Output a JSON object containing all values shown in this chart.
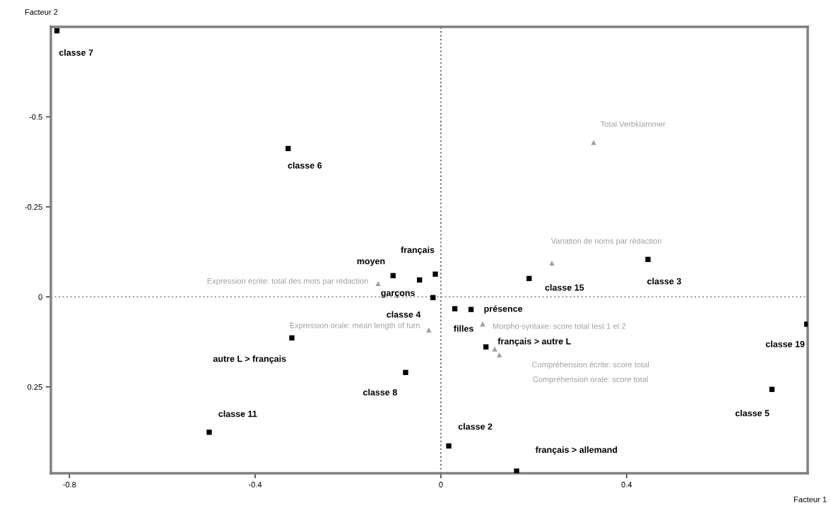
{
  "chart_data": {
    "type": "scatter",
    "xlabel": "Facteur 1",
    "ylabel": "Facteur 2",
    "xlim": [
      -0.84,
      0.79
    ],
    "ylim": [
      0.49,
      -0.75
    ],
    "xticks": [
      -0.8,
      -0.4,
      0,
      0.4
    ],
    "yticks": [
      -0.5,
      -0.25,
      0,
      0.25
    ],
    "grid": false,
    "ref_lines": [
      {
        "axis": "x",
        "value": 0,
        "line_style": "dotted",
        "color": "#707070"
      },
      {
        "axis": "y",
        "value": 0,
        "line_style": "dotted",
        "color": "#999999"
      }
    ],
    "series": [
      {
        "color": "#000000",
        "marker": "square",
        "x": [
          -0.827,
          -0.329,
          -0.103,
          -0.012,
          -0.046,
          -0.017,
          -0.321,
          -0.076,
          -0.499,
          0.017,
          0.163,
          0.03,
          0.065,
          0.097,
          0.19,
          0.446,
          0.788,
          0.713
        ],
        "values": [
          -0.739,
          -0.412,
          -0.059,
          -0.063,
          -0.047,
          0.002,
          0.114,
          0.21,
          0.376,
          0.414,
          0.484,
          0.033,
          0.035,
          0.139,
          -0.051,
          -0.104,
          0.076,
          0.257
        ]
      },
      {
        "color": "#a0a0a0",
        "marker": "triangle",
        "x": [
          -0.135,
          -0.026,
          0.09,
          0.116,
          0.126,
          0.239,
          0.329
        ],
        "values": [
          -0.037,
          0.092,
          0.075,
          0.145,
          0.161,
          -0.094,
          -0.429
        ]
      }
    ],
    "annotations": [
      {
        "text": "classe 7",
        "x": -0.827,
        "y": -0.739
      },
      {
        "text": "classe 6",
        "x": -0.329,
        "y": -0.412
      },
      {
        "text": "moyen",
        "x": -0.103,
        "y": -0.059
      },
      {
        "text": "français",
        "x": -0.012,
        "y": -0.063
      },
      {
        "text": "garçons",
        "x": -0.046,
        "y": -0.047
      },
      {
        "text": "classe 4",
        "x": -0.017,
        "y": 0.002
      },
      {
        "text": "Expression écrite: total des mots par rédaction",
        "x": -0.135,
        "y": -0.037
      },
      {
        "text": "Expression orale: mean length of turn",
        "x": -0.026,
        "y": 0.092
      },
      {
        "text": "autre L > français",
        "x": -0.321,
        "y": 0.114
      },
      {
        "text": "classe 8",
        "x": -0.076,
        "y": 0.21
      },
      {
        "text": "classe 11",
        "x": -0.499,
        "y": 0.376
      },
      {
        "text": "classe 2",
        "x": 0.017,
        "y": 0.414
      },
      {
        "text": "français > allemand",
        "x": 0.163,
        "y": 0.484
      },
      {
        "text": "filles",
        "x": 0.03,
        "y": 0.033
      },
      {
        "text": "présence",
        "x": 0.065,
        "y": 0.035
      },
      {
        "text": "Morpho-syntaxe: score total test 1 et 2",
        "x": 0.09,
        "y": 0.075
      },
      {
        "text": "français > autre L",
        "x": 0.097,
        "y": 0.139
      },
      "Compréhension écrite: score total",
      "Compréhension orale: score total",
      {
        "text": "classe 15",
        "x": 0.19,
        "y": -0.051
      },
      "Variation de noms par rédaction",
      {
        "text": "classe 3",
        "x": 0.446,
        "y": -0.104
      },
      {
        "text": "Total Verbklammer",
        "x": 0.329,
        "y": -0.429
      },
      {
        "text": "classe 19",
        "x": 0.788,
        "y": 0.076
      },
      {
        "text": "classe 5",
        "x": 0.713,
        "y": 0.257
      }
    ]
  }
}
